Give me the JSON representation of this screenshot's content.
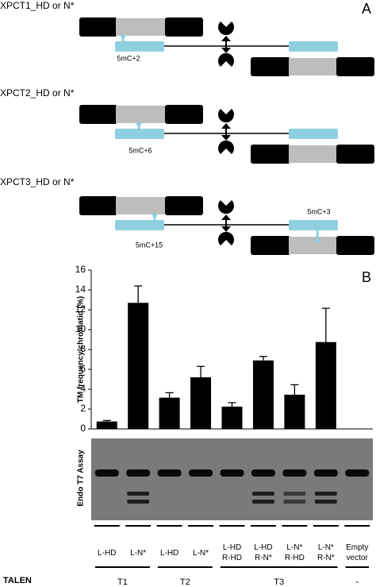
{
  "panel_a": {
    "label": "A",
    "constructs": [
      {
        "name": "XPCT1_HD or N*",
        "annotation": "5mC+2"
      },
      {
        "name": "XPCT2_HD or N*",
        "annotation": "5mC+6"
      },
      {
        "name": "XPCT3_HD or N*",
        "annotation": "5mC+15",
        "annotation_right": "5mC+3"
      }
    ]
  },
  "chart_data": {
    "type": "bar",
    "panel_label": "B",
    "ylabel": "TM frequency/chromatid (%)",
    "categories": [
      "L-HD",
      "L-N*",
      "L-HD",
      "L-N*",
      "L-HD\nR-HD",
      "L-HD\nR-N*",
      "L-N*\nR-HD",
      "L-N*\nR-N*",
      "Empty\nvector"
    ],
    "values": [
      0.75,
      12.7,
      3.15,
      5.2,
      2.25,
      6.9,
      3.45,
      8.75,
      null
    ],
    "errors": [
      0.1,
      1.7,
      0.5,
      1.1,
      0.4,
      0.4,
      1.0,
      3.4,
      null
    ],
    "color": "#000000",
    "ylim": [
      0,
      16
    ],
    "yticks": [
      0,
      2,
      4,
      6,
      8,
      10,
      12,
      14,
      16
    ]
  },
  "gel": {
    "ylabel": "Endo  T7 Assay"
  },
  "talen": {
    "label": "TALEN",
    "groups": [
      "T1",
      "T2",
      "T3",
      "-"
    ]
  }
}
